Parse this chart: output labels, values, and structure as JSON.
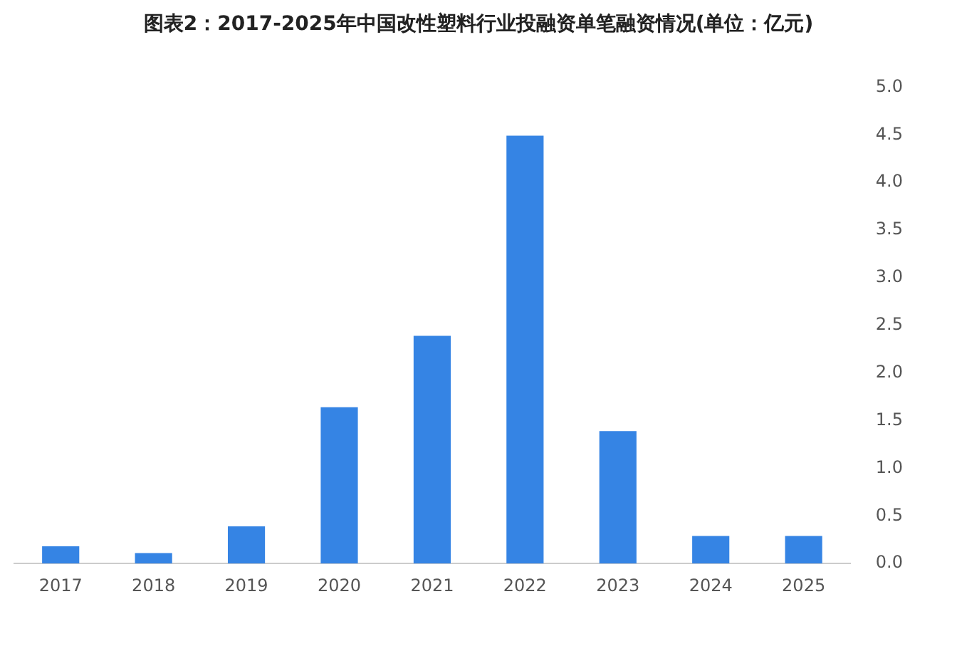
{
  "chart_data": {
    "type": "bar",
    "title": "图表2：2017-2025年中国改性塑料行业投融资单笔融资情况(单位：亿元)",
    "categories": [
      "2017",
      "2018",
      "2019",
      "2020",
      "2021",
      "2022",
      "2023",
      "2024",
      "2025"
    ],
    "values": [
      0.18,
      0.11,
      0.39,
      1.64,
      2.39,
      4.49,
      1.39,
      0.29,
      0.29
    ],
    "color": "#3584e4",
    "ylim": [
      0,
      5
    ],
    "yticks": [
      {
        "value": 0,
        "label": "0.0"
      },
      {
        "value": 0.5,
        "label": "0.5"
      },
      {
        "value": 1,
        "label": "1.0"
      },
      {
        "value": 1.5,
        "label": "1.5"
      },
      {
        "value": 2,
        "label": "2.0"
      },
      {
        "value": 2.5,
        "label": "2.5"
      },
      {
        "value": 3,
        "label": "3.0"
      },
      {
        "value": 3.5,
        "label": "3.5"
      },
      {
        "value": 4,
        "label": "4.0"
      },
      {
        "value": 4.5,
        "label": "4.5"
      },
      {
        "value": 5,
        "label": "5.0"
      }
    ],
    "grid": false,
    "legend": false
  }
}
